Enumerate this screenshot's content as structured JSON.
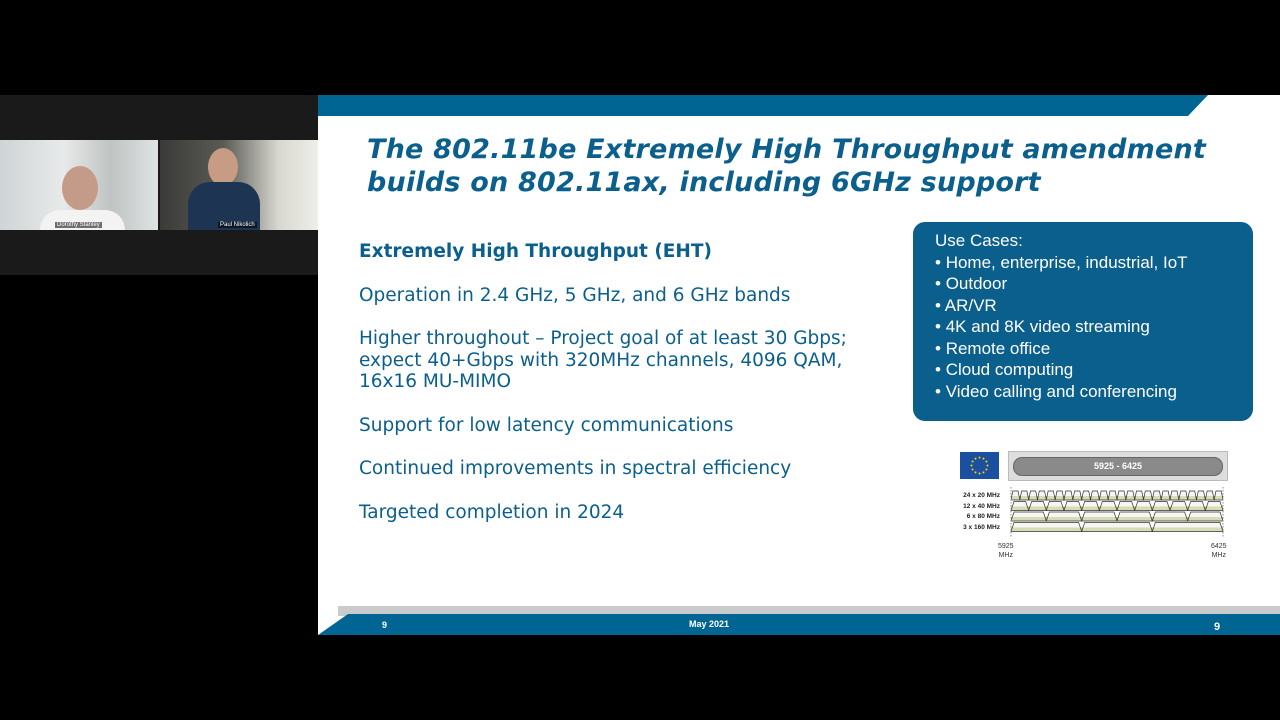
{
  "participants": [
    {
      "name": "Dorothy Stanley"
    },
    {
      "name": "Paul Nikolich"
    }
  ],
  "slide": {
    "title_line1": "The 802.11be Extremely High Throughput amendment",
    "title_line2": "builds on 802.11ax, including 6GHz support",
    "heading": "Extremely High Throughput (EHT)",
    "bullets": [
      "Operation in 2.4 GHz, 5 GHz, and 6 GHz bands",
      "Higher throughout – Project goal of at least 30 Gbps; expect 40+Gbps with 320MHz channels, 4096 QAM, 16x16 MU-MIMO",
      "Support for low latency communications",
      "Continued improvements in spectral efficiency",
      "Targeted completion in 2024"
    ],
    "use_cases": {
      "title": "Use Cases:",
      "items": [
        "Home, enterprise, industrial, IoT",
        "Outdoor",
        "AR/VR",
        "4K and 8K video streaming",
        "Remote office",
        "Cloud computing",
        "Video calling and conferencing"
      ]
    },
    "spectrum": {
      "band_label": "5925 - 6425",
      "rows": [
        {
          "label": "24 x 20 MHz",
          "count": 24
        },
        {
          "label": "12 x 40 MHz",
          "count": 12
        },
        {
          "label": "6 x 80 MHz",
          "count": 6
        },
        {
          "label": "3 x 160 MHz",
          "count": 3
        }
      ],
      "start_label": "5925",
      "end_label": "6425",
      "unit": "MHz"
    },
    "footer": {
      "left_number": "9",
      "date": "May 2021",
      "page_number": "9"
    },
    "colors": {
      "brand_blue": "#016593",
      "text_blue": "#0a5f8c",
      "channel_green": "#b5bf6a"
    }
  }
}
